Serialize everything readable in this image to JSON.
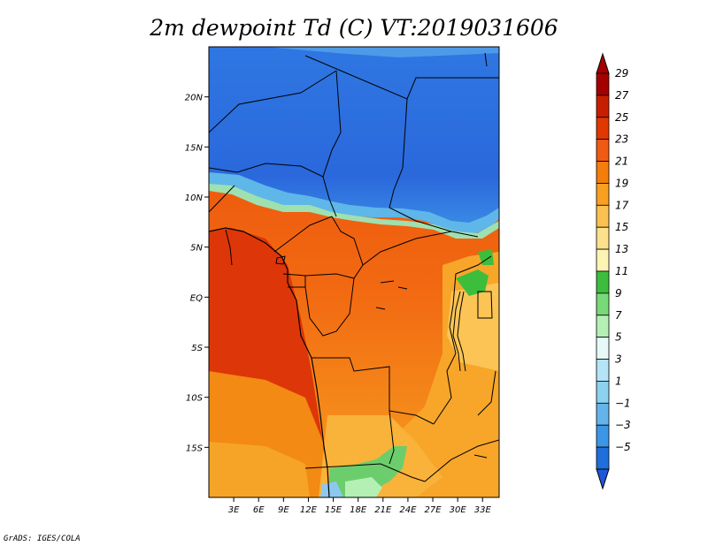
{
  "title": "2m dewpoint Td (C) VT:2019031606",
  "credit": "GrADS: IGES/COLA",
  "map": {
    "lon_range": [
      0,
      35
    ],
    "lat_range": [
      -20,
      25
    ],
    "lat_ticks": [
      {
        "value": 20,
        "label": "20N"
      },
      {
        "value": 15,
        "label": "15N"
      },
      {
        "value": 10,
        "label": "10N"
      },
      {
        "value": 5,
        "label": "5N"
      },
      {
        "value": 0,
        "label": "EQ"
      },
      {
        "value": -5,
        "label": "5S"
      },
      {
        "value": -10,
        "label": "10S"
      },
      {
        "value": -15,
        "label": "15S"
      }
    ],
    "lon_ticks": [
      {
        "value": 3,
        "label": "3E"
      },
      {
        "value": 6,
        "label": "6E"
      },
      {
        "value": 9,
        "label": "9E"
      },
      {
        "value": 12,
        "label": "12E"
      },
      {
        "value": 15,
        "label": "15E"
      },
      {
        "value": 18,
        "label": "18E"
      },
      {
        "value": 21,
        "label": "21E"
      },
      {
        "value": 24,
        "label": "24E"
      },
      {
        "value": 27,
        "label": "27E"
      },
      {
        "value": 30,
        "label": "30E"
      },
      {
        "value": 33,
        "label": "33E"
      }
    ]
  },
  "colorbar": {
    "levels": [
      {
        "label": "29",
        "color": "#a50000"
      },
      {
        "label": "27",
        "color": "#c81e00"
      },
      {
        "label": "25",
        "color": "#e03800"
      },
      {
        "label": "23",
        "color": "#f05a14"
      },
      {
        "label": "21",
        "color": "#f57d0a"
      },
      {
        "label": "19",
        "color": "#f9a020"
      },
      {
        "label": "17",
        "color": "#fbc050"
      },
      {
        "label": "15",
        "color": "#fde08c"
      },
      {
        "label": "13",
        "color": "#fdf4b4"
      },
      {
        "label": "11",
        "color": "#3cbe3c"
      },
      {
        "label": "9",
        "color": "#78d978"
      },
      {
        "label": "7",
        "color": "#b4f0b4"
      },
      {
        "label": "5",
        "color": "#e6f8f8"
      },
      {
        "label": "3",
        "color": "#b4e4f5"
      },
      {
        "label": "1",
        "color": "#8cd2f0"
      },
      {
        "label": "−1",
        "color": "#64b4eb"
      },
      {
        "label": "−3",
        "color": "#3c96e6"
      },
      {
        "label": "−5",
        "color": "#1e6edc"
      }
    ],
    "low_color": "#1f56d6"
  }
}
